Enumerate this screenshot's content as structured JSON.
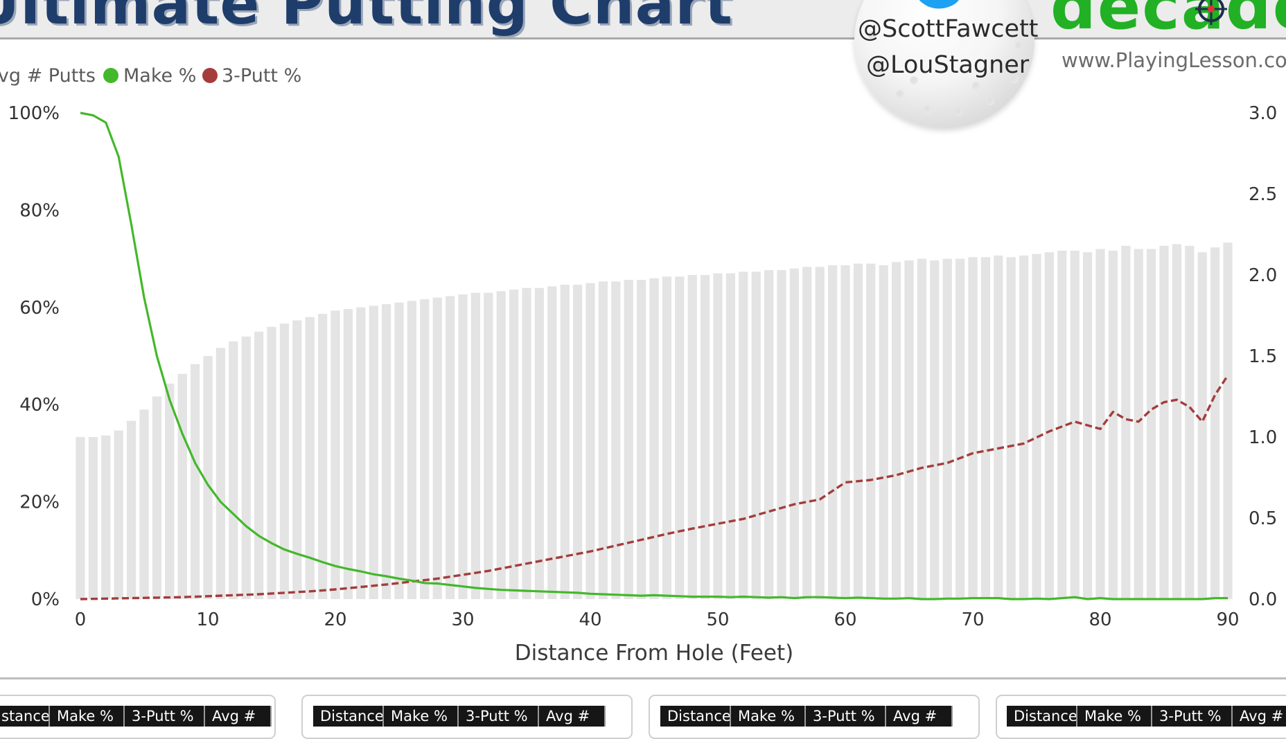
{
  "header": {
    "title": "Ultimate Putting Chart",
    "twitter_handle_1": "@ScottFawcett",
    "twitter_handle_2": "@LouStagner",
    "logo_text": "decade",
    "website": "www.PlayingLesson.com"
  },
  "colors": {
    "make": "#43b82a",
    "three_putt": "#a53c3c",
    "bars": "#e4e4e4",
    "title": "#1f3d6b",
    "logo": "#22b024",
    "twitter": "#1da1f2"
  },
  "chart_data": {
    "type": "bar",
    "xlabel": "Distance From Hole (Feet)",
    "x_ticks": [
      "0",
      "10",
      "20",
      "30",
      "40",
      "50",
      "60",
      "70",
      "80",
      "90"
    ],
    "y_left_ticks": [
      "0%",
      "20%",
      "40%",
      "60%",
      "80%",
      "100%"
    ],
    "y_right_ticks": [
      "0.0",
      "0.5",
      "1.0",
      "1.5",
      "2.0",
      "2.5",
      "3.0"
    ],
    "ylim_left": [
      0,
      100
    ],
    "ylim_right": [
      0,
      3
    ],
    "xlim": [
      0,
      90
    ],
    "legend": [
      "Avg # Putts",
      "Make %",
      "3-Putt %"
    ],
    "legend_position": "top-left",
    "grid": false,
    "series": [
      {
        "name": "Avg # Putts",
        "type": "bar",
        "axis": "right",
        "x": [
          0,
          1,
          2,
          3,
          4,
          5,
          6,
          7,
          8,
          9,
          10,
          11,
          12,
          13,
          14,
          15,
          16,
          17,
          18,
          19,
          20,
          21,
          22,
          23,
          24,
          25,
          26,
          27,
          28,
          29,
          30,
          31,
          32,
          33,
          34,
          35,
          36,
          37,
          38,
          39,
          40,
          41,
          42,
          43,
          44,
          45,
          46,
          47,
          48,
          49,
          50,
          51,
          52,
          53,
          54,
          55,
          56,
          57,
          58,
          59,
          60,
          61,
          62,
          63,
          64,
          65,
          66,
          67,
          68,
          69,
          70,
          71,
          72,
          73,
          74,
          75,
          76,
          77,
          78,
          79,
          80,
          81,
          82,
          83,
          84,
          85,
          86,
          87,
          88,
          89,
          90
        ],
        "values": [
          1.0,
          1.0,
          1.01,
          1.04,
          1.1,
          1.17,
          1.25,
          1.33,
          1.39,
          1.45,
          1.5,
          1.55,
          1.59,
          1.62,
          1.65,
          1.68,
          1.7,
          1.72,
          1.74,
          1.76,
          1.78,
          1.79,
          1.8,
          1.81,
          1.82,
          1.83,
          1.84,
          1.85,
          1.86,
          1.87,
          1.88,
          1.89,
          1.89,
          1.9,
          1.91,
          1.92,
          1.92,
          1.93,
          1.94,
          1.94,
          1.95,
          1.96,
          1.96,
          1.97,
          1.97,
          1.98,
          1.99,
          1.99,
          2.0,
          2.0,
          2.01,
          2.01,
          2.02,
          2.02,
          2.03,
          2.03,
          2.04,
          2.05,
          2.05,
          2.06,
          2.06,
          2.07,
          2.07,
          2.06,
          2.08,
          2.09,
          2.1,
          2.09,
          2.1,
          2.1,
          2.11,
          2.11,
          2.12,
          2.11,
          2.12,
          2.13,
          2.14,
          2.15,
          2.15,
          2.14,
          2.16,
          2.15,
          2.18,
          2.16,
          2.16,
          2.18,
          2.19,
          2.18,
          2.14,
          2.17,
          2.2
        ]
      },
      {
        "name": "Make %",
        "type": "line",
        "axis": "left",
        "x": [
          0,
          1,
          2,
          3,
          4,
          5,
          6,
          7,
          8,
          9,
          10,
          11,
          12,
          13,
          14,
          15,
          16,
          17,
          18,
          19,
          20,
          21,
          22,
          23,
          24,
          25,
          26,
          27,
          28,
          29,
          30,
          31,
          32,
          33,
          34,
          35,
          36,
          37,
          38,
          39,
          40,
          41,
          42,
          43,
          44,
          45,
          46,
          47,
          48,
          49,
          50,
          51,
          52,
          53,
          54,
          55,
          56,
          57,
          58,
          59,
          60,
          61,
          62,
          63,
          64,
          65,
          66,
          67,
          68,
          69,
          70,
          71,
          72,
          73,
          74,
          75,
          76,
          77,
          78,
          79,
          80,
          81,
          82,
          83,
          84,
          85,
          86,
          87,
          88,
          89,
          90
        ],
        "values": [
          100,
          99.5,
          98,
          91,
          77,
          62,
          50,
          41,
          34,
          28,
          23.5,
          20,
          17.5,
          15,
          13,
          11.5,
          10.2,
          9.3,
          8.5,
          7.6,
          6.8,
          6.2,
          5.7,
          5.1,
          4.7,
          4.2,
          3.8,
          3.3,
          3.2,
          2.9,
          2.6,
          2.3,
          2.1,
          1.9,
          1.8,
          1.7,
          1.6,
          1.5,
          1.4,
          1.3,
          1.1,
          1.0,
          0.9,
          0.8,
          0.7,
          0.8,
          0.7,
          0.6,
          0.5,
          0.5,
          0.5,
          0.4,
          0.5,
          0.4,
          0.3,
          0.4,
          0.2,
          0.4,
          0.4,
          0.3,
          0.2,
          0.3,
          0.2,
          0.1,
          0.1,
          0.2,
          0.0,
          0.0,
          0.1,
          0.1,
          0.2,
          0.2,
          0.2,
          0.0,
          0.0,
          0.1,
          0.0,
          0.2,
          0.4,
          0.0,
          0.2,
          0.0,
          0.0,
          0.0,
          0.0,
          0.0,
          0.0,
          0.0,
          0.0,
          0.2,
          0.2
        ]
      },
      {
        "name": "3-Putt %",
        "type": "line",
        "dash": true,
        "axis": "left",
        "x": [
          0,
          2,
          4,
          6,
          8,
          10,
          12,
          14,
          16,
          18,
          20,
          22,
          24,
          26,
          28,
          30,
          32,
          34,
          36,
          38,
          40,
          42,
          44,
          46,
          48,
          50,
          52,
          54,
          56,
          58,
          60,
          62,
          64,
          66,
          68,
          70,
          72,
          74,
          76,
          78,
          80,
          81,
          82,
          83,
          84,
          85,
          86,
          87,
          88,
          89,
          90
        ],
        "values": [
          0.0,
          0.1,
          0.2,
          0.3,
          0.4,
          0.6,
          0.8,
          1.0,
          1.3,
          1.6,
          2.0,
          2.5,
          3.0,
          3.6,
          4.2,
          5.0,
          5.8,
          6.8,
          7.8,
          8.8,
          9.8,
          11.0,
          12.2,
          13.4,
          14.5,
          15.5,
          16.5,
          18.0,
          19.5,
          20.5,
          24.0,
          24.5,
          25.5,
          27.0,
          28.0,
          30.0,
          31.0,
          32.0,
          34.5,
          36.5,
          35.0,
          38.5,
          37.0,
          36.5,
          39.0,
          40.5,
          41.0,
          39.5,
          36.5,
          42.0,
          46.0
        ]
      }
    ]
  },
  "tables": [
    {
      "columns": [
        "Distance",
        "Make %",
        "3-Putt %",
        "Avg #"
      ]
    },
    {
      "columns": [
        "Distance",
        "Make %",
        "3-Putt %",
        "Avg #"
      ]
    },
    {
      "columns": [
        "Distance",
        "Make %",
        "3-Putt %",
        "Avg #"
      ]
    },
    {
      "columns": [
        "Distance",
        "Make %",
        "3-Putt %",
        "Avg #"
      ]
    }
  ]
}
